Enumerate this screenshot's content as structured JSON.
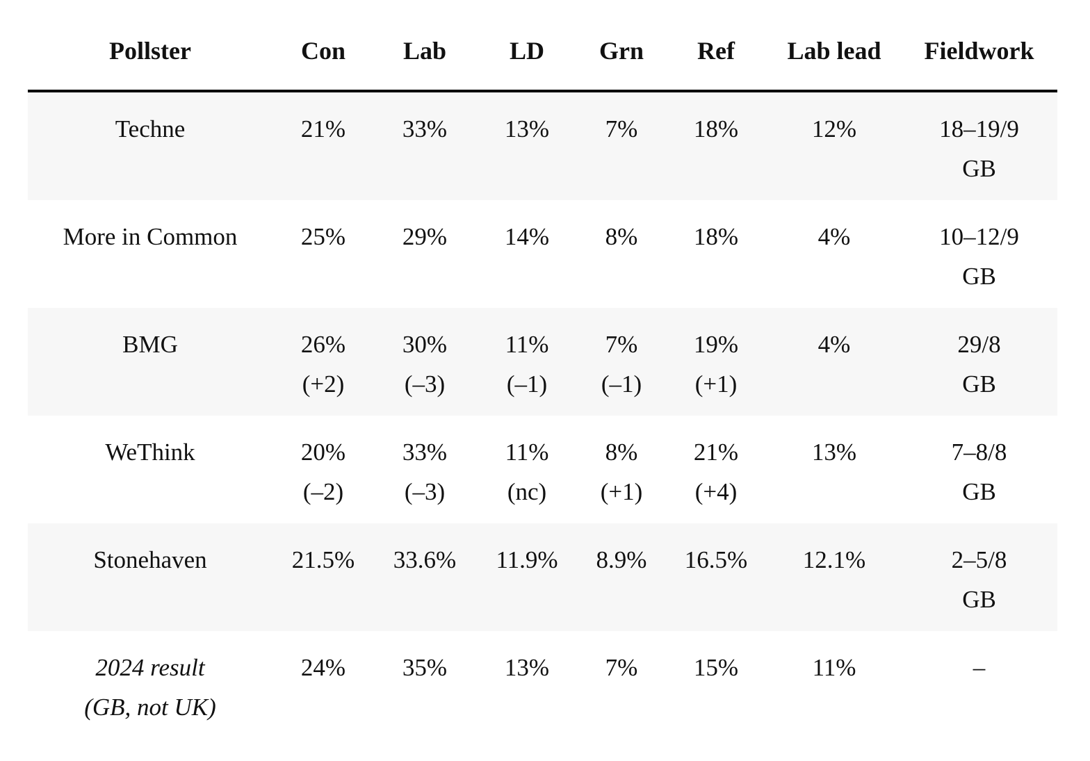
{
  "headers": {
    "pollster": "Pollster",
    "con": "Con",
    "lab": "Lab",
    "ld": "LD",
    "grn": "Grn",
    "ref": "Ref",
    "lab_lead": "Lab lead",
    "fieldwork": "Fieldwork"
  },
  "rows": [
    {
      "pollster": [
        "Techne"
      ],
      "con": [
        "21%"
      ],
      "lab": [
        "33%"
      ],
      "ld": [
        "13%"
      ],
      "grn": [
        "7%"
      ],
      "ref": [
        "18%"
      ],
      "lab_lead": [
        "12%"
      ],
      "fieldwork": [
        "18–19/9",
        "GB"
      ]
    },
    {
      "pollster": [
        "More in Common"
      ],
      "con": [
        "25%"
      ],
      "lab": [
        "29%"
      ],
      "ld": [
        "14%"
      ],
      "grn": [
        "8%"
      ],
      "ref": [
        "18%"
      ],
      "lab_lead": [
        "4%"
      ],
      "fieldwork": [
        "10–12/9",
        "GB"
      ]
    },
    {
      "pollster": [
        "BMG"
      ],
      "con": [
        "26%",
        "(+2)"
      ],
      "lab": [
        "30%",
        "(–3)"
      ],
      "ld": [
        "11%",
        "(–1)"
      ],
      "grn": [
        "7%",
        "(–1)"
      ],
      "ref": [
        "19%",
        "(+1)"
      ],
      "lab_lead": [
        "4%"
      ],
      "fieldwork": [
        "29/8",
        "GB"
      ]
    },
    {
      "pollster": [
        "WeThink"
      ],
      "con": [
        "20%",
        "(–2)"
      ],
      "lab": [
        "33%",
        "(–3)"
      ],
      "ld": [
        "11%",
        "(nc)"
      ],
      "grn": [
        "8%",
        "(+1)"
      ],
      "ref": [
        "21%",
        "(+4)"
      ],
      "lab_lead": [
        "13%"
      ],
      "fieldwork": [
        "7–8/8",
        "GB"
      ]
    },
    {
      "pollster": [
        "Stonehaven"
      ],
      "con": [
        "21.5%"
      ],
      "lab": [
        "33.6%"
      ],
      "ld": [
        "11.9%"
      ],
      "grn": [
        "8.9%"
      ],
      "ref": [
        "16.5%"
      ],
      "lab_lead": [
        "12.1%"
      ],
      "fieldwork": [
        "2–5/8",
        "GB"
      ]
    },
    {
      "pollster": [
        "2024 result",
        "(GB, not UK)"
      ],
      "con": [
        "24%"
      ],
      "lab": [
        "35%"
      ],
      "ld": [
        "13%"
      ],
      "grn": [
        "7%"
      ],
      "ref": [
        "15%"
      ],
      "lab_lead": [
        "11%"
      ],
      "fieldwork": [
        "–"
      ]
    }
  ]
}
